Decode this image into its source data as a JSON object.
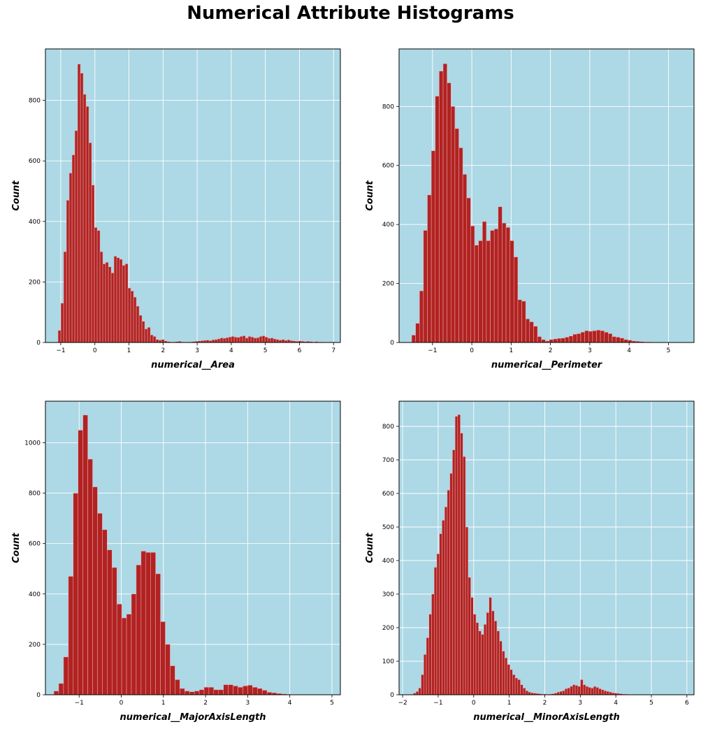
{
  "title": "Numerical Attribute Histograms",
  "chart_data": [
    {
      "type": "bar",
      "xlabel": "numerical__Area",
      "ylabel": "Count",
      "xlim": [
        -1.45,
        7.2
      ],
      "ylim": [
        0,
        970
      ],
      "xticks": [
        -1,
        0,
        1,
        2,
        3,
        4,
        5,
        6,
        7
      ],
      "yticks": [
        0,
        200,
        400,
        600,
        800
      ],
      "grid": true,
      "bin_start": -1.08,
      "bin_width": 0.082,
      "counts": [
        40,
        130,
        300,
        470,
        560,
        620,
        700,
        920,
        890,
        820,
        780,
        660,
        520,
        380,
        370,
        300,
        260,
        265,
        250,
        230,
        285,
        280,
        275,
        255,
        260,
        180,
        170,
        150,
        120,
        90,
        70,
        45,
        50,
        25,
        20,
        10,
        8,
        10,
        5,
        3,
        2,
        2,
        3,
        4,
        2,
        1,
        2,
        2,
        3,
        4,
        5,
        6,
        7,
        8,
        6,
        9,
        10,
        12,
        15,
        14,
        16,
        18,
        20,
        18,
        17,
        20,
        22,
        15,
        20,
        18,
        15,
        16,
        20,
        22,
        18,
        14,
        15,
        12,
        10,
        8,
        10,
        7,
        9,
        6,
        5,
        4,
        5,
        4,
        3,
        4,
        3,
        2,
        3,
        2,
        2,
        1,
        1,
        2,
        1,
        1
      ]
    },
    {
      "type": "bar",
      "xlabel": "numerical__Perimeter",
      "ylabel": "Count",
      "xlim": [
        -1.85,
        5.65
      ],
      "ylim": [
        0,
        995
      ],
      "xticks": [
        -1,
        0,
        1,
        2,
        3,
        4,
        5
      ],
      "yticks": [
        0,
        200,
        400,
        600,
        800
      ],
      "grid": true,
      "bin_start": -1.53,
      "bin_width": 0.1,
      "counts": [
        25,
        65,
        175,
        380,
        500,
        650,
        835,
        920,
        945,
        880,
        800,
        725,
        660,
        570,
        490,
        395,
        330,
        345,
        410,
        345,
        380,
        385,
        460,
        405,
        390,
        345,
        290,
        145,
        140,
        80,
        70,
        55,
        20,
        10,
        5,
        10,
        12,
        14,
        15,
        18,
        22,
        28,
        30,
        35,
        40,
        38,
        40,
        42,
        40,
        35,
        30,
        20,
        18,
        15,
        10,
        8,
        5,
        4,
        3,
        2,
        2,
        1
      ]
    },
    {
      "type": "bar",
      "xlabel": "numerical__MajorAxisLength",
      "ylabel": "Count",
      "xlim": [
        -1.8,
        5.2
      ],
      "ylim": [
        0,
        1165
      ],
      "xticks": [
        -1,
        0,
        1,
        2,
        3,
        4,
        5
      ],
      "yticks": [
        0,
        200,
        400,
        600,
        800,
        1000
      ],
      "grid": true,
      "bin_start": -1.6,
      "bin_width": 0.115,
      "counts": [
        15,
        45,
        150,
        470,
        800,
        1050,
        1110,
        935,
        825,
        720,
        655,
        575,
        505,
        360,
        305,
        320,
        400,
        515,
        570,
        565,
        565,
        480,
        290,
        200,
        115,
        60,
        25,
        15,
        12,
        15,
        20,
        30,
        30,
        20,
        20,
        40,
        40,
        35,
        30,
        35,
        38,
        30,
        25,
        18,
        10,
        8,
        5,
        3,
        2,
        1
      ]
    },
    {
      "type": "bar",
      "xlabel": "numerical__MinorAxisLength",
      "ylabel": "Count",
      "xlim": [
        -2.1,
        6.2
      ],
      "ylim": [
        0,
        875
      ],
      "xticks": [
        -2,
        -1,
        0,
        1,
        2,
        3,
        4,
        5,
        6
      ],
      "yticks": [
        0,
        100,
        200,
        300,
        400,
        500,
        600,
        700,
        800
      ],
      "grid": true,
      "bin_start": -1.7,
      "bin_width": 0.0735,
      "counts": [
        5,
        10,
        20,
        60,
        120,
        170,
        240,
        300,
        380,
        420,
        480,
        520,
        560,
        610,
        660,
        730,
        830,
        835,
        780,
        710,
        500,
        350,
        290,
        240,
        215,
        190,
        180,
        210,
        245,
        290,
        250,
        220,
        190,
        160,
        130,
        110,
        90,
        75,
        60,
        50,
        45,
        30,
        20,
        12,
        8,
        6,
        5,
        4,
        3,
        2,
        2,
        1,
        2,
        3,
        5,
        8,
        10,
        12,
        18,
        20,
        25,
        30,
        28,
        25,
        45,
        30,
        25,
        22,
        20,
        25,
        22,
        18,
        15,
        12,
        10,
        8,
        6,
        5,
        4,
        3,
        2,
        2,
        1,
        1
      ]
    }
  ]
}
